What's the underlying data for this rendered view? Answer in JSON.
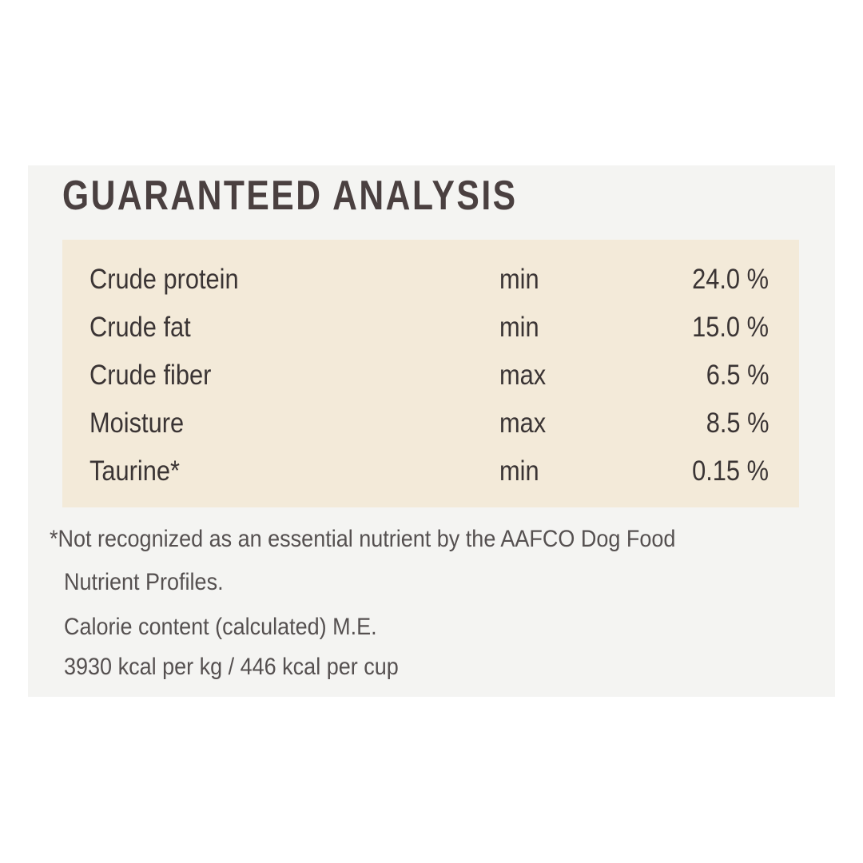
{
  "header": {
    "title": "GUARANTEED ANALYSIS"
  },
  "table": {
    "rows": [
      [
        "Crude protein",
        "min",
        "24.0 %"
      ],
      [
        "Crude fat",
        "min",
        "15.0 %"
      ],
      [
        "Crude fiber",
        "max",
        "6.5 %"
      ],
      [
        "Moisture",
        "max",
        "8.5 %"
      ],
      [
        "Taurine*",
        "min",
        "0.15 %"
      ]
    ]
  },
  "notes": {
    "lines": [
      "*Not recognized as an essential nutrient by the AAFCO Dog Food",
      "Nutrient Profiles.",
      "Calorie content (calculated) M.E.",
      "3930 kcal per kg / 446 kcal per cup"
    ]
  }
}
